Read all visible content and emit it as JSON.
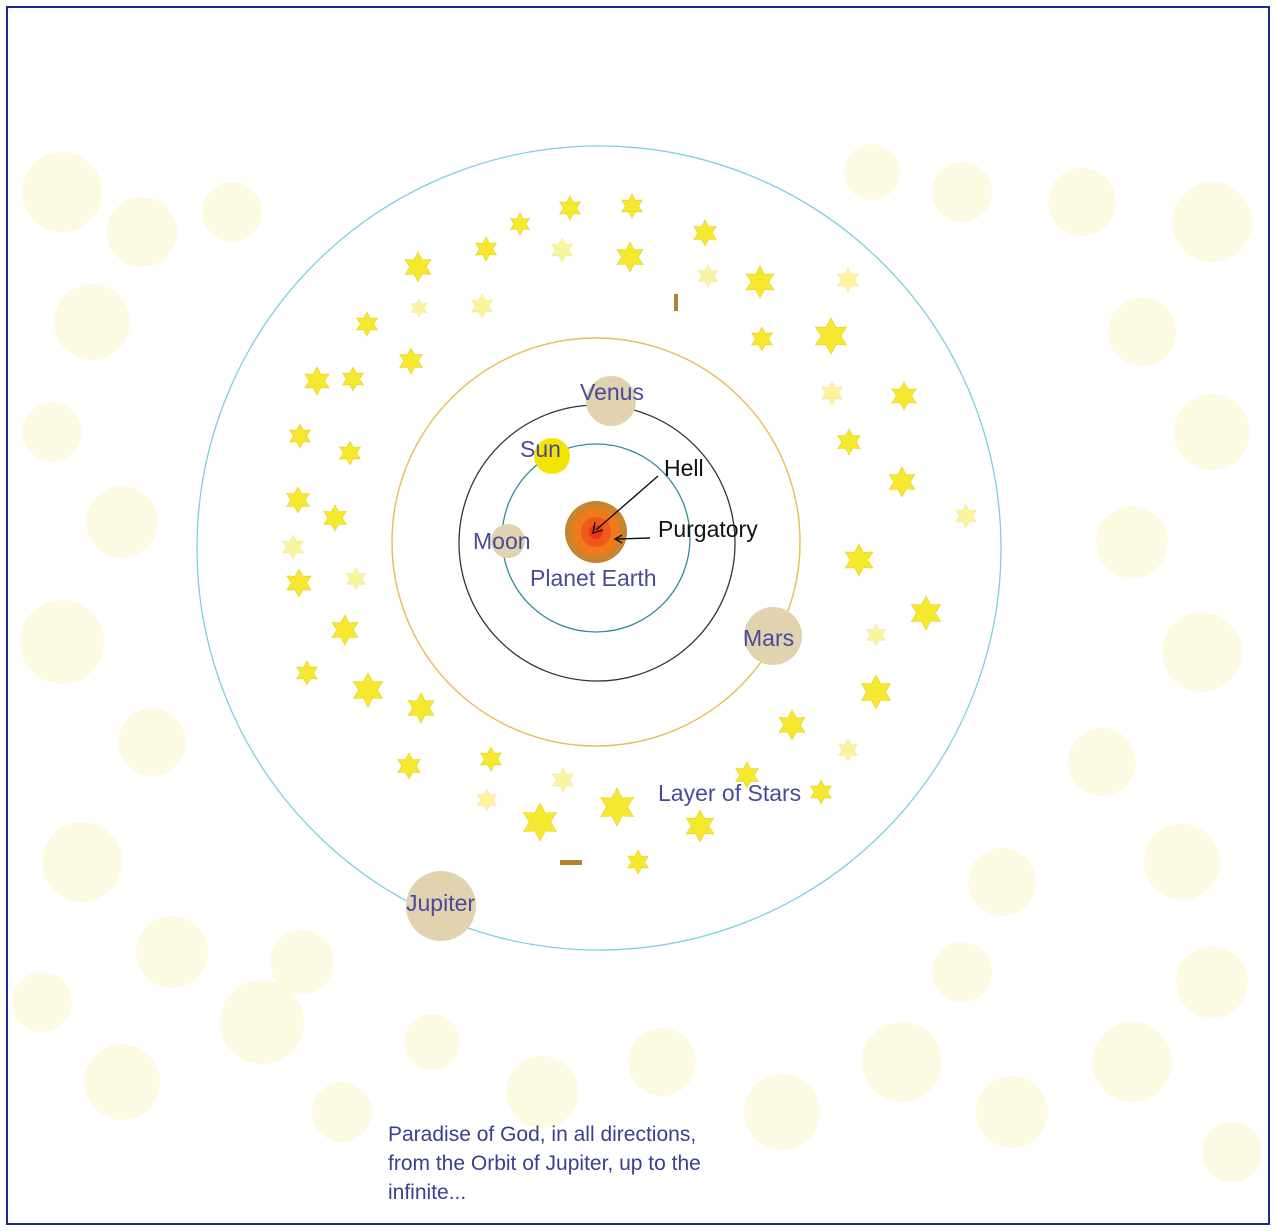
{
  "diagram": {
    "labels": {
      "venus": "Venus",
      "sun": "Sun",
      "hell": "Hell",
      "purgatory": "Purgatory",
      "moon": "Moon",
      "planet_earth": "Planet Earth",
      "mars": "Mars",
      "layer_of_stars": "Layer of Stars",
      "jupiter": "Jupiter"
    },
    "caption_lines": [
      "Paradise of God, in all directions,",
      "from the Orbit of Jupiter, up to the",
      "infinite..."
    ]
  },
  "colors": {
    "frame": "#1e2a8a",
    "label_blue": "#4a4a9a",
    "planet_tan": "#e1d2b0",
    "sun_yellow": "#f2e600",
    "star_yellow": "#f6e82e",
    "earth_outer": "#c7832d",
    "earth_inner": "#f07a1a"
  }
}
